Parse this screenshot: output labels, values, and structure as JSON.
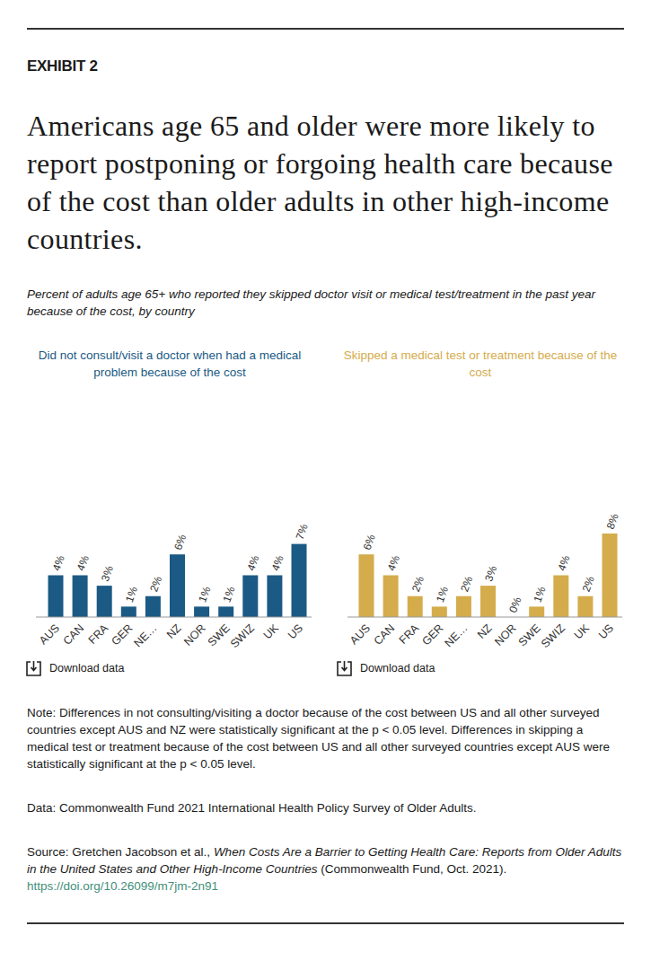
{
  "page": {
    "exhibit": "EXHIBIT 2",
    "title": "Americans age 65 and older were more likely to report postponing or forgoing health care because of the cost than older adults in other high-income countries.",
    "subtitle": "Percent of adults age 65+ who reported they skipped doctor visit or medical test/treatment in the past year because of the cost, by country",
    "download": "Download data",
    "note": "Note: Differences in not consulting/visiting a doctor because of the cost between US and all other surveyed countries except AUS and NZ were statistically significant at the p < 0.05 level. Differences in skipping a medical test or treatment because of the cost between US and all other surveyed countries except AUS were statistically significant at the p < 0.05 level.",
    "data": "Data: Commonwealth Fund 2021 International Health Policy Survey of Older Adults.",
    "source": {
      "prefix": "Source: Gretchen Jacobson et al., ",
      "title": "When Costs Are a Barrier to Getting Health Care: Reports from Older Adults in the United States and Other High-Income Countries",
      "suffix": " (Commonwealth Fund, Oct. 2021). ",
      "link": "https://doi.org/10.26099/m7jm-2n91"
    }
  },
  "chart_data": [
    {
      "type": "bar",
      "title": "Did not consult/visit a doctor when had a medical problem because of the cost",
      "categories": [
        "AUS",
        "CAN",
        "FRA",
        "GER",
        "NE…",
        "NZ",
        "NOR",
        "SWE",
        "SWIZ",
        "UK",
        "US"
      ],
      "values": [
        4,
        4,
        3,
        1,
        2,
        6,
        1,
        1,
        4,
        4,
        7
      ],
      "value_labels": [
        "4%",
        "4%",
        "3%",
        "1%",
        "2%",
        "6%",
        "1%",
        "1%",
        "4%",
        "4%",
        "7%"
      ],
      "color": "#1b5a84",
      "ylim": [
        0,
        8
      ],
      "data_labels": true,
      "tick_labels": "x"
    },
    {
      "type": "bar",
      "title": "Skipped a medical test or treatment because of the cost",
      "categories": [
        "AUS",
        "CAN",
        "FRA",
        "GER",
        "NE…",
        "NZ",
        "NOR",
        "SWE",
        "SWIZ",
        "UK",
        "US"
      ],
      "values": [
        6,
        4,
        2,
        1,
        2,
        3,
        0,
        1,
        4,
        2,
        8
      ],
      "value_labels": [
        "6%",
        "4%",
        "2%",
        "1%",
        "2%",
        "3%",
        "0%",
        "1%",
        "4%",
        "2%",
        "8%"
      ],
      "color": "#d4ac4c",
      "ylim": [
        0,
        8
      ],
      "data_labels": true,
      "tick_labels": "x"
    }
  ]
}
